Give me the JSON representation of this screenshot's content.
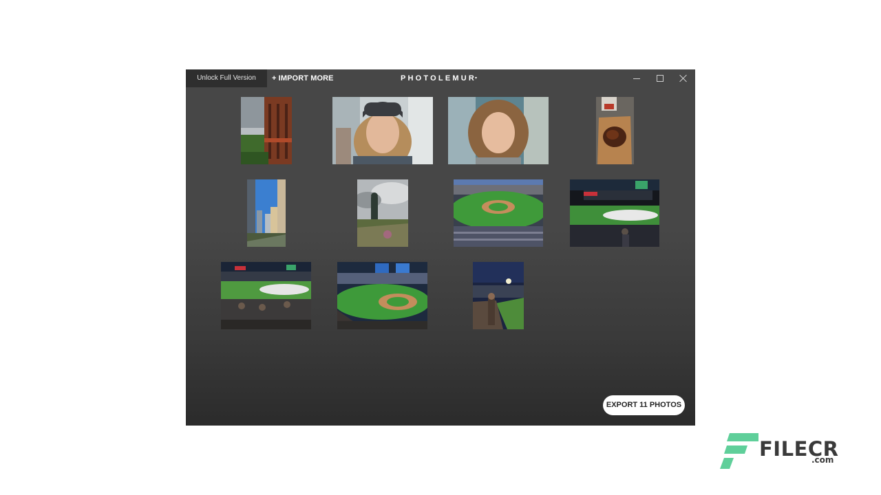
{
  "titlebar": {
    "unlock_label": "Unlock Full Version",
    "import_label": "+ IMPORT MORE",
    "brand_label": "PHOTOLEMUR",
    "brand_caret": "▾"
  },
  "photos": [
    {
      "subject": "balcony building with cloudy sky"
    },
    {
      "subject": "young man with beanie portrait"
    },
    {
      "subject": "young man with long hair portrait"
    },
    {
      "subject": "food in paper wrapper"
    },
    {
      "subject": "city street with tall buildings"
    },
    {
      "subject": "statue under cloudy sky"
    },
    {
      "subject": "baseball stadium daytime"
    },
    {
      "subject": "baseball stadium with covered field"
    },
    {
      "subject": "stadium crowd with covered field"
    },
    {
      "subject": "baseball stadium field view"
    },
    {
      "subject": "night stadium portrait"
    }
  ],
  "export": {
    "label": "EXPORT 11 PHOTOS"
  },
  "watermark": {
    "name": "FILECR",
    "suffix": ".com"
  },
  "colors": {
    "app_background": "#474747",
    "unlock_background": "#2e2e2e",
    "watermark_green": "#5fcf9a"
  }
}
